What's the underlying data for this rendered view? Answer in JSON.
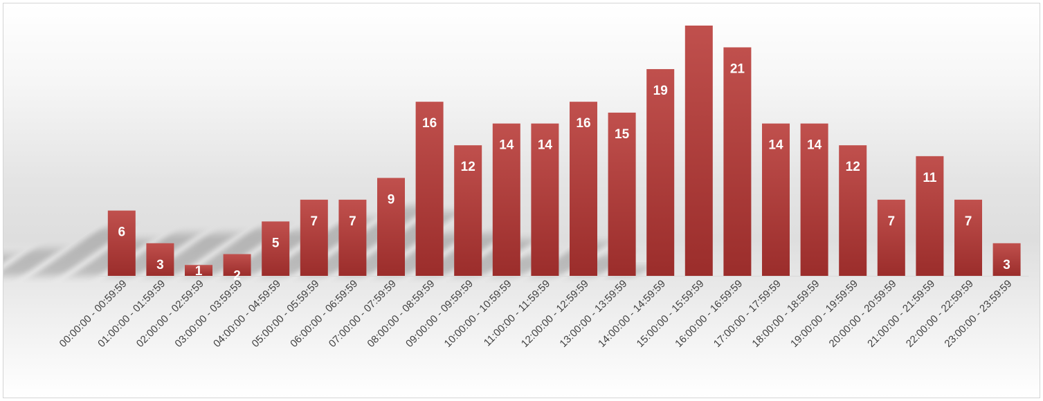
{
  "chart_data": {
    "type": "bar",
    "categories": [
      "00:00:00 - 00:59:59",
      "01:00:00 - 01:59:59",
      "02:00:00 - 02:59:59",
      "03:00:00 - 03:59:59",
      "04:00:00 - 04:59:59",
      "05:00:00 - 05:59:59",
      "06:00:00 - 06:59:59",
      "07:00:00 - 07:59:59",
      "08:00:00 - 08:59:59",
      "09:00:00 - 09:59:59",
      "10:00:00 - 10:59:59",
      "11:00:00 - 11:59:59",
      "12:00:00 - 12:59:59",
      "13:00:00 - 13:59:59",
      "14:00:00 - 14:59:59",
      "15:00:00 - 15:59:59",
      "16:00:00 - 16:59:59",
      "17:00:00 - 17:59:59",
      "18:00:00 - 18:59:59",
      "19:00:00 - 19:59:59",
      "20:00:00 - 20:59:59",
      "21:00:00 - 21:59:59",
      "22:00:00 - 22:59:59",
      "23:00:00 - 23:59:59"
    ],
    "values": [
      6,
      3,
      1,
      2,
      5,
      7,
      7,
      9,
      16,
      12,
      14,
      14,
      16,
      15,
      19,
      23,
      21,
      14,
      14,
      12,
      7,
      11,
      7,
      3
    ],
    "data_labels": [
      "6",
      "3",
      "1",
      "2",
      "5",
      "7",
      "7",
      "9",
      "16",
      "12",
      "14",
      "14",
      "16",
      "15",
      "19",
      "",
      "21",
      "14",
      "14",
      "12",
      "7",
      "11",
      "7",
      "3"
    ],
    "title": "",
    "xlabel": "",
    "ylabel": "",
    "ylim": [
      0,
      23
    ],
    "grid": false,
    "legend": "none",
    "colors": {
      "bar_top": "#c0504d",
      "bar_bottom": "#9b2d2b",
      "label": "#ffffff",
      "axis": "#d9d9d9",
      "tick_text": "#404040"
    }
  }
}
